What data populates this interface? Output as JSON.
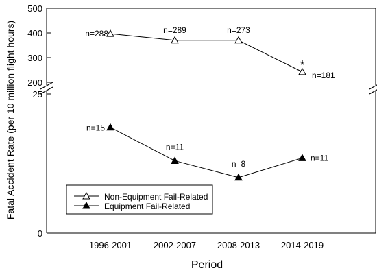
{
  "chart_data": {
    "type": "line",
    "xlabel": "Period",
    "ylabel": "Fatal Accident Rate (per 10 million flight hours)",
    "categories": [
      "1996-2001",
      "2002-2007",
      "2008-2013",
      "2014-2019"
    ],
    "axis_break": true,
    "upper_panel": {
      "ylim": [
        200,
        500
      ],
      "yticks": [
        "500",
        "400",
        "300",
        "200"
      ]
    },
    "lower_panel": {
      "ylim": [
        0,
        25
      ],
      "yticks": [
        "25",
        "0"
      ]
    },
    "series": [
      {
        "name": "Non-Equipment Fail-Related",
        "panel": "upper",
        "marker": "open-triangle",
        "values": [
          397,
          370,
          370,
          242
        ],
        "labels": [
          "n=288",
          "n=289",
          "n=273",
          "n=181"
        ],
        "annotations": [
          "",
          "",
          "",
          "*"
        ]
      },
      {
        "name": "Equipment Fail-Related",
        "panel": "lower",
        "marker": "filled-triangle",
        "values": [
          19,
          13,
          10,
          13.5
        ],
        "labels": [
          "n=15",
          "n=11",
          "n=8",
          "n=11"
        ],
        "annotations": [
          "",
          "",
          "",
          ""
        ]
      }
    ],
    "legend_position": "bottom-left"
  }
}
